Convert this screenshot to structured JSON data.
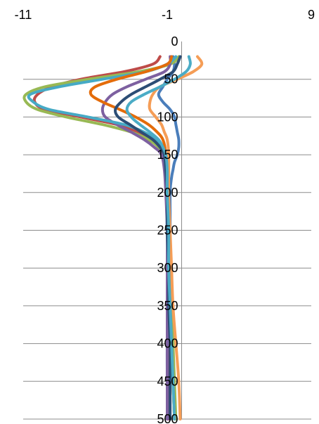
{
  "chart_data": {
    "type": "line",
    "title": "",
    "xlabel": "",
    "ylabel": "",
    "x_axis_position": "top",
    "y_axis_crosses_at_x": 0,
    "y_reversed": true,
    "xlim": [
      -11,
      9
    ],
    "ylim": [
      0,
      500
    ],
    "x_ticks": [
      -11,
      -1,
      9
    ],
    "y_ticks": [
      0,
      50,
      100,
      150,
      200,
      250,
      300,
      350,
      400,
      450,
      500
    ],
    "grid": "horizontal",
    "legend": "none",
    "series": [
      {
        "color": "#4a7ebb",
        "points": [
          [
            -0.6,
            20
          ],
          [
            -0.5,
            30
          ],
          [
            -0.6,
            40
          ],
          [
            -1.0,
            50
          ],
          [
            -1.3,
            60
          ],
          [
            -1.6,
            70
          ],
          [
            -1.3,
            80
          ],
          [
            -0.8,
            90
          ],
          [
            -0.5,
            100
          ],
          [
            -0.4,
            110
          ],
          [
            -0.3,
            120
          ],
          [
            -0.2,
            130
          ],
          [
            -0.2,
            140
          ],
          [
            -0.3,
            150
          ],
          [
            -0.5,
            160
          ],
          [
            -0.6,
            170
          ],
          [
            -0.7,
            180
          ],
          [
            -0.8,
            200
          ],
          [
            -0.8,
            250
          ],
          [
            -0.9,
            300
          ],
          [
            -0.9,
            350
          ],
          [
            -1.0,
            400
          ],
          [
            -1.0,
            450
          ],
          [
            -1.0,
            500
          ]
        ]
      },
      {
        "color": "#be4b48",
        "points": [
          [
            -1.5,
            20
          ],
          [
            -2.0,
            30
          ],
          [
            -4.0,
            40
          ],
          [
            -7.0,
            50
          ],
          [
            -9.0,
            60
          ],
          [
            -10.0,
            70
          ],
          [
            -10.2,
            80
          ],
          [
            -9.5,
            90
          ],
          [
            -7.0,
            100
          ],
          [
            -4.5,
            110
          ],
          [
            -3.0,
            120
          ],
          [
            -2.2,
            130
          ],
          [
            -1.6,
            140
          ],
          [
            -1.3,
            150
          ],
          [
            -1.1,
            170
          ],
          [
            -1.0,
            200
          ],
          [
            -0.9,
            250
          ],
          [
            -0.9,
            300
          ],
          [
            -0.9,
            350
          ],
          [
            -0.9,
            400
          ],
          [
            -0.9,
            450
          ],
          [
            -0.9,
            500
          ]
        ]
      },
      {
        "color": "#98b954",
        "points": [
          [
            -0.2,
            20
          ],
          [
            -0.8,
            30
          ],
          [
            -3.0,
            40
          ],
          [
            -6.5,
            50
          ],
          [
            -9.5,
            60
          ],
          [
            -10.8,
            70
          ],
          [
            -10.8,
            80
          ],
          [
            -10.0,
            90
          ],
          [
            -8.0,
            100
          ],
          [
            -5.5,
            110
          ],
          [
            -3.5,
            120
          ],
          [
            -2.3,
            130
          ],
          [
            -1.6,
            140
          ],
          [
            -1.3,
            150
          ],
          [
            -1.1,
            170
          ],
          [
            -1.0,
            200
          ],
          [
            -0.9,
            250
          ],
          [
            -0.8,
            300
          ],
          [
            -0.7,
            350
          ],
          [
            -0.6,
            400
          ],
          [
            -0.5,
            450
          ],
          [
            -0.4,
            500
          ]
        ]
      },
      {
        "color": "#7d60a0",
        "points": [
          [
            -0.8,
            20
          ],
          [
            -0.8,
            30
          ],
          [
            -1.2,
            40
          ],
          [
            -2.5,
            50
          ],
          [
            -3.8,
            60
          ],
          [
            -4.8,
            70
          ],
          [
            -5.3,
            80
          ],
          [
            -5.5,
            90
          ],
          [
            -5.3,
            100
          ],
          [
            -4.5,
            110
          ],
          [
            -3.5,
            120
          ],
          [
            -2.6,
            130
          ],
          [
            -1.9,
            140
          ],
          [
            -1.4,
            150
          ],
          [
            -1.2,
            170
          ],
          [
            -1.1,
            200
          ],
          [
            -1.0,
            250
          ],
          [
            -1.0,
            300
          ],
          [
            -1.0,
            350
          ],
          [
            -1.0,
            400
          ],
          [
            -1.0,
            450
          ],
          [
            -1.0,
            500
          ]
        ]
      },
      {
        "color": "#46aac5",
        "points": [
          [
            -0.4,
            20
          ],
          [
            -1.0,
            30
          ],
          [
            -2.5,
            40
          ],
          [
            -5.5,
            50
          ],
          [
            -8.5,
            60
          ],
          [
            -10.5,
            70
          ],
          [
            -10.3,
            80
          ],
          [
            -9.2,
            90
          ],
          [
            -6.5,
            100
          ],
          [
            -4.0,
            110
          ],
          [
            -2.6,
            120
          ],
          [
            -1.8,
            130
          ],
          [
            -1.4,
            140
          ],
          [
            -1.2,
            150
          ],
          [
            -1.1,
            170
          ],
          [
            -1.0,
            200
          ],
          [
            -1.0,
            250
          ],
          [
            -0.9,
            300
          ],
          [
            -0.8,
            350
          ],
          [
            -0.7,
            400
          ],
          [
            -0.6,
            450
          ],
          [
            -0.5,
            500
          ]
        ]
      },
      {
        "color": "#f59d56",
        "points": [
          [
            1.1,
            20
          ],
          [
            1.4,
            30
          ],
          [
            0.8,
            40
          ],
          [
            -0.3,
            50
          ],
          [
            -1.5,
            60
          ],
          [
            -2.0,
            70
          ],
          [
            -2.2,
            80
          ],
          [
            -2.2,
            90
          ],
          [
            -1.8,
            100
          ],
          [
            -1.4,
            110
          ],
          [
            -1.2,
            120
          ],
          [
            -1.0,
            130
          ],
          [
            -0.9,
            150
          ],
          [
            -0.9,
            200
          ],
          [
            -0.8,
            250
          ],
          [
            -0.7,
            300
          ],
          [
            -0.6,
            350
          ],
          [
            -0.4,
            400
          ],
          [
            -0.2,
            450
          ],
          [
            -0.1,
            500
          ]
        ]
      },
      {
        "color": "#e46c0a",
        "points": [
          [
            -0.7,
            20
          ],
          [
            -1.0,
            30
          ],
          [
            -2.5,
            40
          ],
          [
            -4.5,
            50
          ],
          [
            -6.0,
            60
          ],
          [
            -6.3,
            70
          ],
          [
            -5.5,
            80
          ],
          [
            -4.3,
            90
          ],
          [
            -3.2,
            100
          ],
          [
            -2.3,
            110
          ],
          [
            -1.7,
            120
          ],
          [
            -1.3,
            130
          ],
          [
            -1.1,
            150
          ],
          [
            -1.0,
            200
          ],
          [
            -0.9,
            250
          ],
          [
            -0.9,
            300
          ],
          [
            -0.8,
            350
          ],
          [
            -0.7,
            400
          ],
          [
            -0.6,
            450
          ],
          [
            -0.5,
            500
          ]
        ]
      },
      {
        "color": "#2c4d75",
        "points": [
          [
            -0.1,
            20
          ],
          [
            -0.3,
            30
          ],
          [
            -0.6,
            40
          ],
          [
            -1.5,
            50
          ],
          [
            -2.5,
            60
          ],
          [
            -3.5,
            70
          ],
          [
            -4.2,
            80
          ],
          [
            -4.6,
            90
          ],
          [
            -4.4,
            100
          ],
          [
            -3.6,
            110
          ],
          [
            -2.8,
            120
          ],
          [
            -2.0,
            130
          ],
          [
            -1.5,
            140
          ],
          [
            -1.2,
            150
          ],
          [
            -1.1,
            170
          ],
          [
            -1.0,
            200
          ],
          [
            -1.0,
            250
          ],
          [
            -0.9,
            300
          ],
          [
            -0.9,
            350
          ],
          [
            -0.8,
            400
          ],
          [
            -0.8,
            450
          ],
          [
            -0.8,
            500
          ]
        ]
      },
      {
        "color": "#4bacc6",
        "points": [
          [
            0.5,
            20
          ],
          [
            0.6,
            30
          ],
          [
            0.3,
            40
          ],
          [
            -0.5,
            50
          ],
          [
            -1.5,
            60
          ],
          [
            -2.6,
            70
          ],
          [
            -3.5,
            80
          ],
          [
            -3.8,
            90
          ],
          [
            -3.5,
            100
          ],
          [
            -2.9,
            110
          ],
          [
            -2.2,
            120
          ],
          [
            -1.6,
            130
          ],
          [
            -1.3,
            140
          ],
          [
            -1.1,
            150
          ],
          [
            -1.0,
            170
          ],
          [
            -1.0,
            200
          ],
          [
            -0.9,
            250
          ],
          [
            -0.9,
            300
          ],
          [
            -0.8,
            350
          ],
          [
            -0.7,
            400
          ],
          [
            -0.6,
            450
          ],
          [
            -0.5,
            500
          ]
        ]
      }
    ]
  }
}
